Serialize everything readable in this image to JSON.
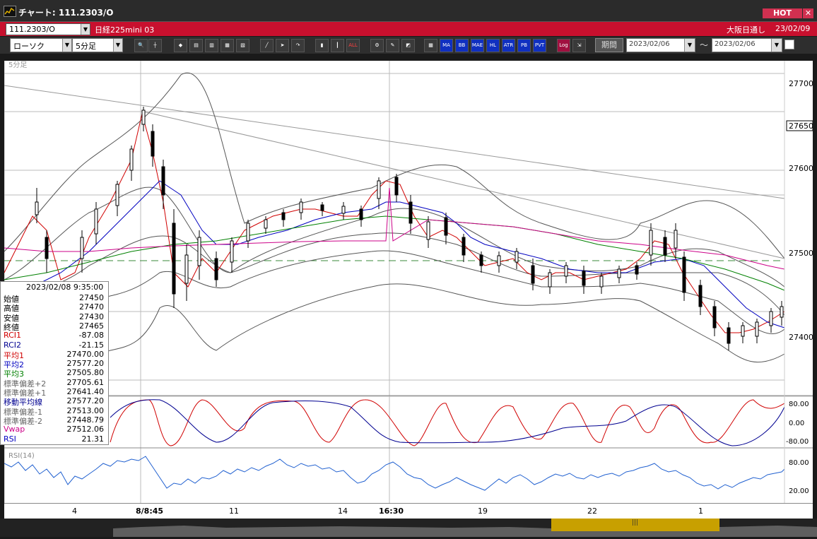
{
  "window": {
    "title": "チャート: 111.2303/O",
    "hot_label": "HOT",
    "close_label": "✕"
  },
  "infobar": {
    "symbol": "111.2303/O",
    "instrument": "日経225mini 03",
    "session": "大阪日通し",
    "date": "23/02/09"
  },
  "toolbar": {
    "chart_type": "ローソク",
    "interval": "5分足",
    "period_label": "期間",
    "date_from": "2023/02/06",
    "date_to": "2023/02/06",
    "range_separator": "～",
    "buttons": [
      "ALL",
      "MA",
      "BB",
      "MAE",
      "HL",
      "ATR",
      "PB",
      "PVT",
      "Log"
    ]
  },
  "chart": {
    "interval_label": "5分足",
    "price_labels": [
      "27700",
      "27600",
      "27500",
      "27400"
    ],
    "current_price": "27650",
    "osc_labels": [
      "80.00",
      "0.00",
      "-80.00"
    ],
    "rsi_title": "RSI(14)",
    "rsi_labels": [
      "80.00",
      "20.00"
    ],
    "time_labels": [
      "4",
      "8/8:45",
      "11",
      "14",
      "16:30",
      "19",
      "22",
      "1"
    ]
  },
  "info_panel": {
    "datetime": "2023/02/08 9:35:00",
    "rows": [
      {
        "label": "始値",
        "value": "27450",
        "color": "#000000"
      },
      {
        "label": "高値",
        "value": "27470",
        "color": "#000000"
      },
      {
        "label": "安値",
        "value": "27430",
        "color": "#000000"
      },
      {
        "label": "終値",
        "value": "27465",
        "color": "#000000"
      },
      {
        "label": "RCI1",
        "value": "-87.08",
        "color": "#d00000"
      },
      {
        "label": "RCI2",
        "value": "-21.15",
        "color": "#000090"
      },
      {
        "label": "平均1",
        "value": "27470.00",
        "color": "#d00000"
      },
      {
        "label": "平均2",
        "value": "27577.20",
        "color": "#0000c0"
      },
      {
        "label": "平均3",
        "value": "27505.80",
        "color": "#008000"
      },
      {
        "label": "標準偏差+2",
        "value": "27705.61",
        "color": "#666666"
      },
      {
        "label": "標準偏差+1",
        "value": "27641.40",
        "color": "#666666"
      },
      {
        "label": "移動平均線",
        "value": "27577.20",
        "color": "#000090"
      },
      {
        "label": "標準偏差-1",
        "value": "27513.00",
        "color": "#666666"
      },
      {
        "label": "標準偏差-2",
        "value": "27448.79",
        "color": "#666666"
      },
      {
        "label": "Vwap",
        "value": "27512.06",
        "color": "#cc0088"
      },
      {
        "label": "RSI",
        "value": "21.31",
        "color": "#0000c0"
      }
    ]
  },
  "colors": {
    "title_accent": "#d03050",
    "infobar": "#c8102e",
    "ma1": "#d00000",
    "ma2": "#0000c0",
    "ma3": "#008000",
    "vwap": "#cc0088",
    "band": "#666666"
  }
}
